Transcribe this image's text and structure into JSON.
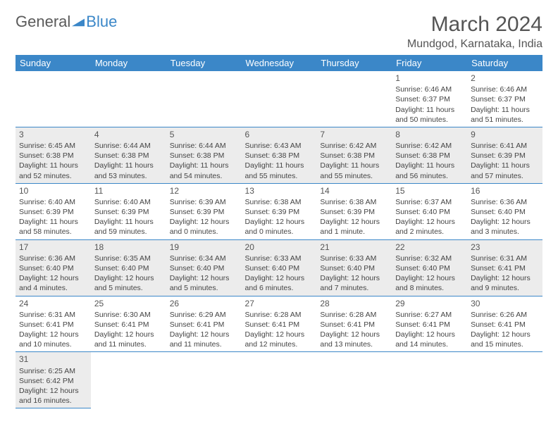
{
  "logo": {
    "word1": "General",
    "word2": "Blue",
    "triangle_color": "#3b87c8"
  },
  "title": "March 2024",
  "subtitle": "Mundgod, Karnataka, India",
  "colors": {
    "header_bg": "#3b87c8",
    "row_odd_bg": "#ececec",
    "row_even_bg": "#ffffff",
    "border": "#3b87c8",
    "text": "#444444"
  },
  "daynames": [
    "Sunday",
    "Monday",
    "Tuesday",
    "Wednesday",
    "Thursday",
    "Friday",
    "Saturday"
  ],
  "weeks": [
    [
      null,
      null,
      null,
      null,
      null,
      {
        "d": "1",
        "sr": "Sunrise: 6:46 AM",
        "ss": "Sunset: 6:37 PM",
        "dl": "Daylight: 11 hours and 50 minutes."
      },
      {
        "d": "2",
        "sr": "Sunrise: 6:46 AM",
        "ss": "Sunset: 6:37 PM",
        "dl": "Daylight: 11 hours and 51 minutes."
      }
    ],
    [
      {
        "d": "3",
        "sr": "Sunrise: 6:45 AM",
        "ss": "Sunset: 6:38 PM",
        "dl": "Daylight: 11 hours and 52 minutes."
      },
      {
        "d": "4",
        "sr": "Sunrise: 6:44 AM",
        "ss": "Sunset: 6:38 PM",
        "dl": "Daylight: 11 hours and 53 minutes."
      },
      {
        "d": "5",
        "sr": "Sunrise: 6:44 AM",
        "ss": "Sunset: 6:38 PM",
        "dl": "Daylight: 11 hours and 54 minutes."
      },
      {
        "d": "6",
        "sr": "Sunrise: 6:43 AM",
        "ss": "Sunset: 6:38 PM",
        "dl": "Daylight: 11 hours and 55 minutes."
      },
      {
        "d": "7",
        "sr": "Sunrise: 6:42 AM",
        "ss": "Sunset: 6:38 PM",
        "dl": "Daylight: 11 hours and 55 minutes."
      },
      {
        "d": "8",
        "sr": "Sunrise: 6:42 AM",
        "ss": "Sunset: 6:38 PM",
        "dl": "Daylight: 11 hours and 56 minutes."
      },
      {
        "d": "9",
        "sr": "Sunrise: 6:41 AM",
        "ss": "Sunset: 6:39 PM",
        "dl": "Daylight: 11 hours and 57 minutes."
      }
    ],
    [
      {
        "d": "10",
        "sr": "Sunrise: 6:40 AM",
        "ss": "Sunset: 6:39 PM",
        "dl": "Daylight: 11 hours and 58 minutes."
      },
      {
        "d": "11",
        "sr": "Sunrise: 6:40 AM",
        "ss": "Sunset: 6:39 PM",
        "dl": "Daylight: 11 hours and 59 minutes."
      },
      {
        "d": "12",
        "sr": "Sunrise: 6:39 AM",
        "ss": "Sunset: 6:39 PM",
        "dl": "Daylight: 12 hours and 0 minutes."
      },
      {
        "d": "13",
        "sr": "Sunrise: 6:38 AM",
        "ss": "Sunset: 6:39 PM",
        "dl": "Daylight: 12 hours and 0 minutes."
      },
      {
        "d": "14",
        "sr": "Sunrise: 6:38 AM",
        "ss": "Sunset: 6:39 PM",
        "dl": "Daylight: 12 hours and 1 minute."
      },
      {
        "d": "15",
        "sr": "Sunrise: 6:37 AM",
        "ss": "Sunset: 6:40 PM",
        "dl": "Daylight: 12 hours and 2 minutes."
      },
      {
        "d": "16",
        "sr": "Sunrise: 6:36 AM",
        "ss": "Sunset: 6:40 PM",
        "dl": "Daylight: 12 hours and 3 minutes."
      }
    ],
    [
      {
        "d": "17",
        "sr": "Sunrise: 6:36 AM",
        "ss": "Sunset: 6:40 PM",
        "dl": "Daylight: 12 hours and 4 minutes."
      },
      {
        "d": "18",
        "sr": "Sunrise: 6:35 AM",
        "ss": "Sunset: 6:40 PM",
        "dl": "Daylight: 12 hours and 5 minutes."
      },
      {
        "d": "19",
        "sr": "Sunrise: 6:34 AM",
        "ss": "Sunset: 6:40 PM",
        "dl": "Daylight: 12 hours and 5 minutes."
      },
      {
        "d": "20",
        "sr": "Sunrise: 6:33 AM",
        "ss": "Sunset: 6:40 PM",
        "dl": "Daylight: 12 hours and 6 minutes."
      },
      {
        "d": "21",
        "sr": "Sunrise: 6:33 AM",
        "ss": "Sunset: 6:40 PM",
        "dl": "Daylight: 12 hours and 7 minutes."
      },
      {
        "d": "22",
        "sr": "Sunrise: 6:32 AM",
        "ss": "Sunset: 6:40 PM",
        "dl": "Daylight: 12 hours and 8 minutes."
      },
      {
        "d": "23",
        "sr": "Sunrise: 6:31 AM",
        "ss": "Sunset: 6:41 PM",
        "dl": "Daylight: 12 hours and 9 minutes."
      }
    ],
    [
      {
        "d": "24",
        "sr": "Sunrise: 6:31 AM",
        "ss": "Sunset: 6:41 PM",
        "dl": "Daylight: 12 hours and 10 minutes."
      },
      {
        "d": "25",
        "sr": "Sunrise: 6:30 AM",
        "ss": "Sunset: 6:41 PM",
        "dl": "Daylight: 12 hours and 11 minutes."
      },
      {
        "d": "26",
        "sr": "Sunrise: 6:29 AM",
        "ss": "Sunset: 6:41 PM",
        "dl": "Daylight: 12 hours and 11 minutes."
      },
      {
        "d": "27",
        "sr": "Sunrise: 6:28 AM",
        "ss": "Sunset: 6:41 PM",
        "dl": "Daylight: 12 hours and 12 minutes."
      },
      {
        "d": "28",
        "sr": "Sunrise: 6:28 AM",
        "ss": "Sunset: 6:41 PM",
        "dl": "Daylight: 12 hours and 13 minutes."
      },
      {
        "d": "29",
        "sr": "Sunrise: 6:27 AM",
        "ss": "Sunset: 6:41 PM",
        "dl": "Daylight: 12 hours and 14 minutes."
      },
      {
        "d": "30",
        "sr": "Sunrise: 6:26 AM",
        "ss": "Sunset: 6:41 PM",
        "dl": "Daylight: 12 hours and 15 minutes."
      }
    ],
    [
      {
        "d": "31",
        "sr": "Sunrise: 6:25 AM",
        "ss": "Sunset: 6:42 PM",
        "dl": "Daylight: 12 hours and 16 minutes."
      },
      null,
      null,
      null,
      null,
      null,
      null
    ]
  ]
}
